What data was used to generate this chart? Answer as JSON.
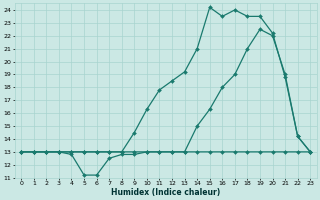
{
  "xlabel": "Humidex (Indice chaleur)",
  "bg_color": "#cbe8e4",
  "grid_color": "#a8d4cf",
  "line_color": "#1a7a6e",
  "xlim": [
    -0.5,
    23.5
  ],
  "ylim": [
    11,
    24.5
  ],
  "xtick_labels": [
    "0",
    "1",
    "2",
    "3",
    "4",
    "5",
    "6",
    "7",
    "8",
    "9",
    "10",
    "11",
    "12",
    "13",
    "14",
    "15",
    "16",
    "17",
    "18",
    "19",
    "20",
    "21",
    "22",
    "23"
  ],
  "xticks": [
    0,
    1,
    2,
    3,
    4,
    5,
    6,
    7,
    8,
    9,
    10,
    11,
    12,
    13,
    14,
    15,
    16,
    17,
    18,
    19,
    20,
    21,
    22,
    23
  ],
  "yticks": [
    11,
    12,
    13,
    14,
    15,
    16,
    17,
    18,
    19,
    20,
    21,
    22,
    23,
    24
  ],
  "series1_x": [
    0,
    1,
    2,
    3,
    4,
    5,
    6,
    7,
    8,
    9,
    10,
    11,
    12,
    13,
    14,
    15,
    16,
    17,
    18,
    19,
    20,
    21,
    22,
    23
  ],
  "series1_y": [
    13,
    13,
    13,
    13,
    12.8,
    11.2,
    11.2,
    12.5,
    12.8,
    12.8,
    13,
    13,
    13,
    13,
    13,
    13,
    13,
    13,
    13,
    13,
    13,
    13,
    13,
    13
  ],
  "series2_x": [
    0,
    1,
    2,
    3,
    4,
    5,
    6,
    7,
    8,
    9,
    10,
    11,
    12,
    13,
    14,
    15,
    16,
    17,
    18,
    19,
    20,
    21,
    22,
    23
  ],
  "series2_y": [
    13,
    13,
    13,
    13,
    13,
    13,
    13,
    13,
    13,
    13,
    13,
    13,
    13,
    13,
    15,
    16.3,
    18,
    19,
    21,
    22.5,
    22,
    19,
    14.2,
    13
  ],
  "series3_x": [
    0,
    1,
    2,
    3,
    4,
    5,
    6,
    7,
    8,
    9,
    10,
    11,
    12,
    13,
    14,
    15,
    16,
    17,
    18,
    19,
    20,
    21,
    22,
    23
  ],
  "series3_y": [
    13,
    13,
    13,
    13,
    13,
    13,
    13,
    13,
    13,
    14.5,
    16.3,
    17.8,
    18.5,
    19.2,
    21,
    24.2,
    23.5,
    24,
    23.5,
    23.5,
    22.2,
    18.8,
    14.2,
    13
  ]
}
